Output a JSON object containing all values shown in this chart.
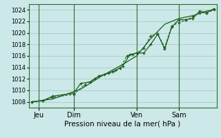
{
  "background_color": "#cce8e8",
  "grid_color": "#aacfcf",
  "line_color": "#1a5c1a",
  "axis_label": "Pression niveau de la mer( hPa )",
  "ylim": [
    1007,
    1025
  ],
  "yticks": [
    1008,
    1010,
    1012,
    1014,
    1016,
    1018,
    1020,
    1022,
    1024
  ],
  "day_labels": [
    "Jeu",
    "Dim",
    "Ven",
    "Sam"
  ],
  "day_positions": [
    0.5,
    3.0,
    7.5,
    10.5
  ],
  "vline_positions": [
    0.5,
    3.0,
    7.5,
    10.5
  ],
  "xlim": [
    -0.2,
    13.2
  ],
  "series1_x": [
    0.0,
    0.8,
    1.5,
    3.0,
    3.5,
    4.2,
    4.8,
    5.5,
    6.0,
    6.5,
    7.0,
    7.5,
    8.0,
    8.5,
    9.0,
    9.5,
    10.0,
    10.5,
    11.0,
    11.5,
    12.0,
    12.5,
    13.0
  ],
  "series1_y": [
    1008.0,
    1008.2,
    1009.0,
    1009.5,
    1011.2,
    1011.5,
    1012.5,
    1013.0,
    1013.5,
    1014.2,
    1016.2,
    1016.5,
    1016.5,
    1018.0,
    1019.8,
    1017.2,
    1021.0,
    1022.3,
    1022.3,
    1022.5,
    1023.8,
    1023.5,
    1024.2
  ],
  "series2_x": [
    0.0,
    0.8,
    1.5,
    3.0,
    3.8,
    4.5,
    5.2,
    5.8,
    6.3,
    6.8,
    7.2,
    7.5,
    8.0,
    8.5,
    9.0,
    9.5,
    10.0,
    10.5,
    11.0,
    11.5,
    12.0,
    12.5,
    13.0
  ],
  "series2_y": [
    1008.0,
    1008.2,
    1008.8,
    1009.3,
    1011.0,
    1012.0,
    1012.8,
    1013.2,
    1013.8,
    1016.0,
    1016.3,
    1016.5,
    1017.3,
    1019.5,
    1019.8,
    1017.5,
    1021.2,
    1021.8,
    1022.2,
    1022.8,
    1023.5,
    1023.5,
    1024.0
  ],
  "series3_x": [
    0.0,
    1.5,
    3.5,
    5.0,
    6.5,
    7.5,
    8.5,
    9.5,
    10.5,
    11.5,
    12.5,
    13.0
  ],
  "series3_y": [
    1008.0,
    1008.5,
    1010.2,
    1012.5,
    1014.5,
    1016.0,
    1019.0,
    1021.5,
    1022.5,
    1023.0,
    1023.8,
    1024.0
  ]
}
